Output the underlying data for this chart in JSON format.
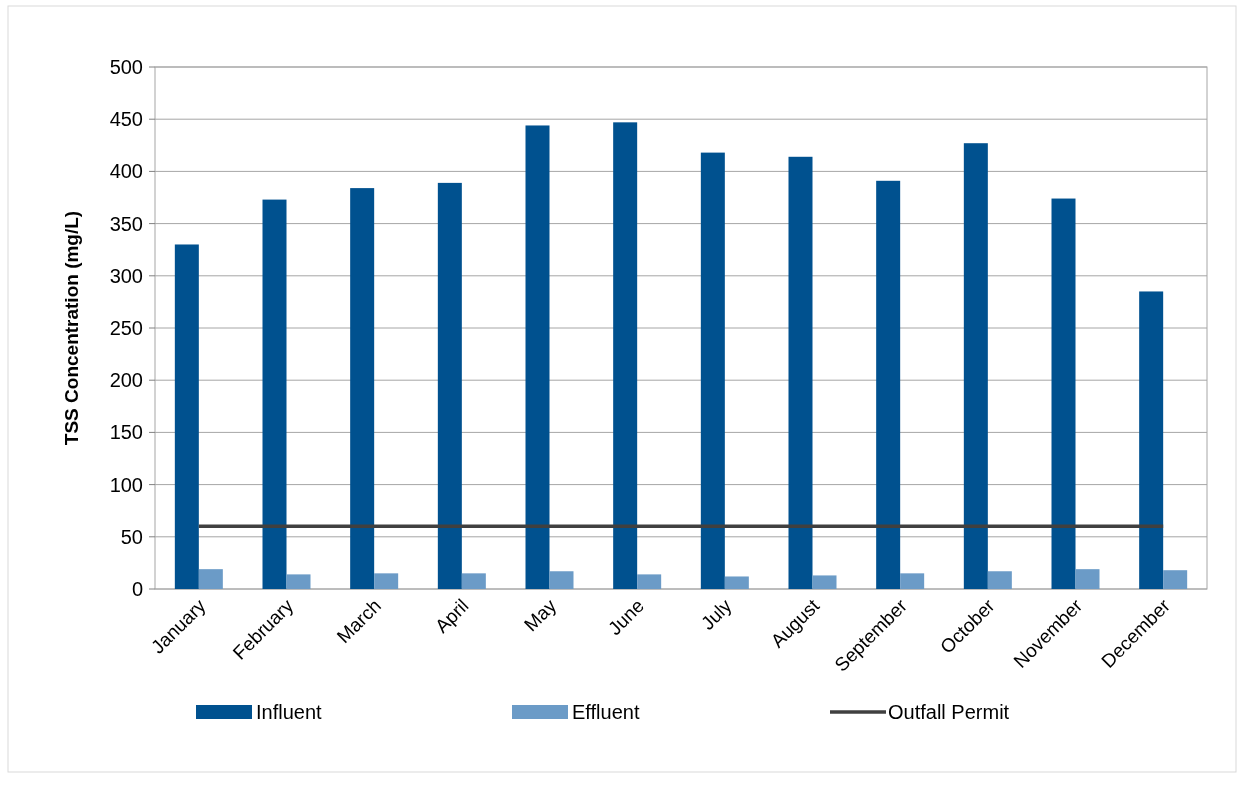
{
  "chart_data": {
    "type": "bar",
    "ylabel": "TSS Concentration (mg/L)",
    "categories": [
      "January",
      "February",
      "March",
      "April",
      "May",
      "June",
      "July",
      "August",
      "September",
      "October",
      "November",
      "December"
    ],
    "series": [
      {
        "name": "Influent",
        "color": "#00518f",
        "values": [
          330,
          373,
          384,
          389,
          444,
          447,
          418,
          414,
          391,
          427,
          374,
          285
        ]
      },
      {
        "name": "Effluent",
        "color": "#6b9bc7",
        "values": [
          19,
          14,
          15,
          15,
          17,
          14,
          12,
          13,
          15,
          17,
          19,
          18
        ]
      },
      {
        "name": "Outfall Permit",
        "type": "line",
        "color": "#404040",
        "values": [
          60,
          60,
          60,
          60,
          60,
          60,
          60,
          60,
          60,
          60,
          60,
          60
        ]
      }
    ],
    "ylim": [
      0,
      500
    ],
    "yticks": [
      0,
      50,
      100,
      150,
      200,
      250,
      300,
      350,
      400,
      450,
      500
    ],
    "grid": "y",
    "legend": "bottom"
  }
}
